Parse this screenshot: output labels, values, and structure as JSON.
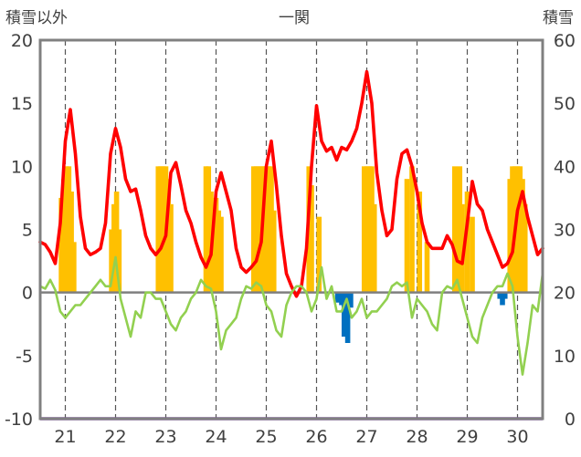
{
  "chart_data": {
    "type": "line",
    "title": "一関",
    "ylabel_left": "積雪以外",
    "ylabel_right": "積雪",
    "xlabel": "",
    "grid": true,
    "ylim_left": [
      -10,
      20
    ],
    "ylim_right": [
      0,
      60
    ],
    "yticks_left": [
      "20",
      "15",
      "10",
      "5",
      "0",
      "-5",
      "-10"
    ],
    "yticks_right": [
      "60",
      "50",
      "40",
      "30",
      "20",
      "10",
      "0"
    ],
    "x_ticks": [
      "21",
      "22",
      "23",
      "24",
      "25",
      "26",
      "27",
      "28",
      "29",
      "30"
    ],
    "xlim": [
      20.5,
      30.5
    ],
    "colors": {
      "temperature": "#ff0000",
      "snow_depth": "#ffc000",
      "sunshine": "#92d050",
      "precipitation": "#0070c0",
      "baseline": "#7030a0"
    },
    "series": [
      {
        "color_key": "temperature",
        "axis": "left",
        "x": [
          20.5,
          20.6,
          20.7,
          20.8,
          20.9,
          21.0,
          21.1,
          21.2,
          21.3,
          21.4,
          21.5,
          21.6,
          21.7,
          21.8,
          21.9,
          22.0,
          22.1,
          22.2,
          22.3,
          22.4,
          22.5,
          22.6,
          22.7,
          22.8,
          22.9,
          23.0,
          23.1,
          23.2,
          23.3,
          23.4,
          23.5,
          23.6,
          23.7,
          23.8,
          23.9,
          24.0,
          24.1,
          24.2,
          24.3,
          24.4,
          24.5,
          24.6,
          24.7,
          24.8,
          24.9,
          25.0,
          25.1,
          25.2,
          25.3,
          25.4,
          25.5,
          25.6,
          25.7,
          25.8,
          25.9,
          26.0,
          26.1,
          26.2,
          26.3,
          26.4,
          26.5,
          26.6,
          26.7,
          26.8,
          26.9,
          27.0,
          27.1,
          27.2,
          27.3,
          27.4,
          27.5,
          27.6,
          27.7,
          27.8,
          27.9,
          28.0,
          28.1,
          28.2,
          28.3,
          28.4,
          28.5,
          28.6,
          28.7,
          28.8,
          28.9,
          29.0,
          29.1,
          29.2,
          29.3,
          29.4,
          29.5,
          29.6,
          29.7,
          29.8,
          29.9,
          30.0,
          30.1,
          30.2,
          30.3,
          30.4,
          30.5
        ],
        "values": [
          4.0,
          3.8,
          3.2,
          2.3,
          5.5,
          12.0,
          14.5,
          11.0,
          6.0,
          3.5,
          3.0,
          3.2,
          3.5,
          5.5,
          11.0,
          13.0,
          11.5,
          9.0,
          8.0,
          8.2,
          6.5,
          4.5,
          3.5,
          3.0,
          3.5,
          4.5,
          9.5,
          10.3,
          8.5,
          6.5,
          5.5,
          4.0,
          2.8,
          2.0,
          3.0,
          8.0,
          9.5,
          8.0,
          6.5,
          3.5,
          2.0,
          1.6,
          2.0,
          2.5,
          4.0,
          10.0,
          12.0,
          8.5,
          4.5,
          1.5,
          0.5,
          -0.3,
          0.5,
          3.5,
          10.0,
          14.8,
          12.0,
          11.2,
          11.5,
          10.5,
          11.5,
          11.3,
          12.0,
          13.0,
          15.0,
          17.5,
          15.0,
          9.5,
          6.5,
          4.5,
          5.0,
          9.0,
          11.0,
          11.3,
          10.0,
          8.0,
          5.5,
          4.0,
          3.5,
          3.5,
          3.5,
          4.5,
          3.8,
          2.5,
          2.3,
          5.5,
          8.8,
          7.0,
          6.5,
          5.0,
          4.0,
          3.0,
          2.0,
          2.3,
          3.2,
          6.5,
          8.0,
          6.0,
          4.5,
          3.0,
          3.5
        ]
      },
      {
        "color_key": "sunshine",
        "axis": "left",
        "x": [
          20.5,
          20.6,
          20.7,
          20.8,
          20.9,
          21.0,
          21.1,
          21.2,
          21.3,
          21.4,
          21.5,
          21.6,
          21.7,
          21.8,
          21.9,
          22.0,
          22.1,
          22.2,
          22.3,
          22.4,
          22.5,
          22.6,
          22.7,
          22.8,
          22.9,
          23.0,
          23.1,
          23.2,
          23.3,
          23.4,
          23.5,
          23.6,
          23.7,
          23.8,
          23.9,
          24.0,
          24.1,
          24.2,
          24.3,
          24.4,
          24.5,
          24.6,
          24.7,
          24.8,
          24.9,
          25.0,
          25.1,
          25.2,
          25.3,
          25.4,
          25.5,
          25.6,
          25.7,
          25.8,
          25.9,
          26.0,
          26.1,
          26.2,
          26.3,
          26.4,
          26.5,
          26.6,
          26.7,
          26.8,
          26.9,
          27.0,
          27.1,
          27.2,
          27.3,
          27.4,
          27.5,
          27.6,
          27.7,
          27.8,
          27.9,
          28.0,
          28.1,
          28.2,
          28.3,
          28.4,
          28.5,
          28.6,
          28.7,
          28.8,
          28.9,
          29.0,
          29.1,
          29.2,
          29.3,
          29.4,
          29.5,
          29.6,
          29.7,
          29.8,
          29.9,
          30.0,
          30.1,
          30.2,
          30.3,
          30.4,
          30.5
        ],
        "values": [
          0.5,
          0.3,
          1.0,
          0.2,
          -1.5,
          -2.0,
          -1.5,
          -1.0,
          -1.0,
          -0.5,
          0.0,
          0.5,
          1.0,
          0.5,
          0.5,
          2.8,
          -0.5,
          -2.0,
          -3.5,
          -1.5,
          -2.0,
          0.0,
          0.0,
          -0.5,
          -0.5,
          -1.5,
          -2.5,
          -3.0,
          -2.0,
          -1.5,
          -0.5,
          0.0,
          1.0,
          0.5,
          0.3,
          -1.5,
          -4.5,
          -3.0,
          -2.5,
          -2.0,
          -0.5,
          0.5,
          0.3,
          0.8,
          0.5,
          -1.0,
          -1.5,
          -3.0,
          -3.5,
          -1.0,
          0.0,
          0.5,
          0.5,
          0.0,
          -1.5,
          -0.5,
          2.0,
          -0.5,
          0.5,
          -1.5,
          -1.5,
          -0.5,
          -2.0,
          -1.5,
          -0.5,
          -2.0,
          -1.5,
          -1.5,
          -1.0,
          -0.5,
          0.5,
          0.8,
          0.5,
          0.8,
          -2.0,
          -0.5,
          -1.0,
          -1.5,
          -2.5,
          -3.0,
          0.0,
          0.5,
          0.3,
          1.0,
          -0.5,
          -2.0,
          -3.5,
          -4.0,
          -2.0,
          -1.0,
          0.0,
          0.5,
          0.5,
          1.5,
          0.5,
          -3.5,
          -6.5,
          -4.0,
          -1.0,
          -1.5,
          1.5
        ]
      },
      {
        "color_key": "snow_depth",
        "axis": "right",
        "bars": [
          [
            20.92,
            35
          ],
          [
            20.97,
            38
          ],
          [
            21.02,
            40
          ],
          [
            21.07,
            40
          ],
          [
            21.12,
            36
          ],
          [
            21.17,
            28
          ],
          [
            21.92,
            30
          ],
          [
            21.97,
            34
          ],
          [
            22.02,
            36
          ],
          [
            22.07,
            30
          ],
          [
            22.85,
            40
          ],
          [
            22.9,
            40
          ],
          [
            22.95,
            40
          ],
          [
            23.0,
            40
          ],
          [
            23.05,
            38
          ],
          [
            23.1,
            34
          ],
          [
            23.8,
            40
          ],
          [
            23.85,
            40
          ],
          [
            23.9,
            36
          ],
          [
            23.95,
            34
          ],
          [
            24.0,
            35
          ],
          [
            24.05,
            33
          ],
          [
            24.1,
            32
          ],
          [
            24.75,
            40
          ],
          [
            24.8,
            40
          ],
          [
            24.85,
            40
          ],
          [
            24.9,
            40
          ],
          [
            24.95,
            40
          ],
          [
            25.0,
            40
          ],
          [
            25.05,
            40
          ],
          [
            25.1,
            40
          ],
          [
            25.15,
            33
          ],
          [
            25.85,
            40
          ],
          [
            25.9,
            37
          ],
          [
            26.05,
            32
          ],
          [
            26.95,
            40
          ],
          [
            27.0,
            40
          ],
          [
            27.05,
            40
          ],
          [
            27.1,
            40
          ],
          [
            27.15,
            34
          ],
          [
            27.8,
            38
          ],
          [
            27.9,
            40
          ],
          [
            28.05,
            36
          ],
          [
            28.2,
            28
          ],
          [
            28.75,
            40
          ],
          [
            28.8,
            38
          ],
          [
            28.85,
            40
          ],
          [
            28.9,
            34
          ],
          [
            29.0,
            36
          ],
          [
            29.1,
            32
          ],
          [
            29.85,
            38
          ],
          [
            29.9,
            40
          ],
          [
            29.95,
            40
          ],
          [
            30.0,
            40
          ],
          [
            30.05,
            40
          ],
          [
            30.1,
            38
          ],
          [
            30.15,
            34
          ]
        ]
      },
      {
        "color_key": "precipitation",
        "axis": "left",
        "bars": [
          [
            26.42,
            -0.8
          ],
          [
            26.5,
            -1.0
          ],
          [
            26.55,
            -3.5
          ],
          [
            26.62,
            -4.0
          ],
          [
            26.68,
            -1.2
          ],
          [
            29.65,
            -0.5
          ],
          [
            29.7,
            -1.0
          ],
          [
            29.75,
            -0.5
          ]
        ]
      }
    ]
  }
}
